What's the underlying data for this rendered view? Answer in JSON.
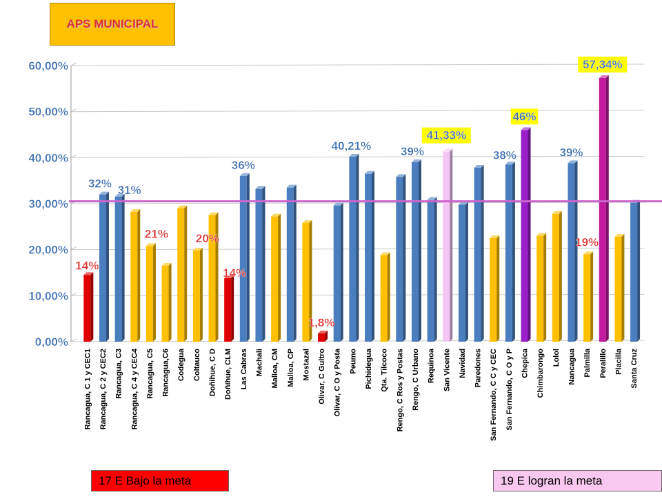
{
  "title": "APS MUNICIPAL",
  "legend": {
    "below": {
      "label": "17 E Bajo la meta",
      "color": "#ff0000"
    },
    "meet": {
      "label": "19 E logran la meta",
      "color": "#f9c8f0"
    }
  },
  "colors": {
    "blue": "#4a7ebf",
    "yellow": "#ffc000",
    "red": "#e00000",
    "pink": "#f4c6f4",
    "purple": "#9a1fc8",
    "magenta": "#c21a9e",
    "target_line": "#cc66cc",
    "label_blue": "#3f6fb0",
    "label_red": "#e03030",
    "label_highlight_bg": "#ffff00"
  },
  "chart_data": {
    "type": "bar",
    "ylim": [
      0,
      60
    ],
    "yticks": [
      "0,00%",
      "10,00%",
      "20,00%",
      "30,00%",
      "40,00%",
      "50,00%",
      "60,00%"
    ],
    "target": 30.5,
    "categories": [
      "Rancagua, C 1 y CEC1",
      "Rancagua, C 2 y CEC2",
      "Rancagua, C3",
      "Rancagua, C 4 y CEC4",
      "Rancagua, C5",
      "Rancagua,C6",
      "Codegua",
      "Coltauco",
      "Doñihue, C D",
      "Doñihue, CLM",
      "Las Cabras",
      "Machali",
      "Malloa, CM",
      "Malloa, CP",
      "Mostazal",
      "Olivar, C Gultro",
      "Olivar, C O y Posta",
      "Peumo",
      "Pichidegua",
      "Qta. Tilcoco",
      "Rengo, C Ros y Postas",
      "Rengo, C Urbano",
      "Requinoa",
      "San Vicente",
      "Navidad",
      "Paredones",
      "San Fernando, C C y CEC",
      "San Fernando, C O y P",
      "Chepica",
      "Chimbarongo",
      "Lolol",
      "Nancagua",
      "Palmilla",
      "Peralillo",
      "Placilla",
      "Santa Cruz"
    ],
    "values": [
      14.5,
      32,
      31.5,
      28.2,
      20.8,
      16.5,
      29.0,
      19.8,
      27.5,
      13.8,
      36.0,
      33.2,
      27.2,
      33.5,
      25.8,
      1.8,
      29.6,
      40.2,
      36.5,
      18.8,
      35.8,
      39.0,
      30.8,
      41.3,
      29.8,
      37.8,
      22.5,
      38.5,
      46.0,
      23.0,
      27.8,
      38.8,
      19.0,
      57.3,
      22.8,
      30.2
    ],
    "bar_colors": [
      "red",
      "blue",
      "blue",
      "yellow",
      "yellow",
      "yellow",
      "yellow",
      "yellow",
      "yellow",
      "red",
      "blue",
      "blue",
      "yellow",
      "blue",
      "yellow",
      "red",
      "blue",
      "blue",
      "blue",
      "yellow",
      "blue",
      "blue",
      "blue",
      "pink",
      "blue",
      "blue",
      "yellow",
      "blue",
      "purple",
      "yellow",
      "yellow",
      "blue",
      "yellow",
      "magenta",
      "yellow",
      "blue"
    ],
    "annotations": [
      {
        "index": 0,
        "text": "14%",
        "color": "red",
        "highlight": false,
        "dx": 0,
        "lift": 8
      },
      {
        "index": 1,
        "text": "32%",
        "color": "blue",
        "highlight": false,
        "dx": -4,
        "lift": 10
      },
      {
        "index": 2,
        "text": "31%",
        "color": "blue",
        "highlight": false,
        "dx": 16,
        "lift": 4
      },
      {
        "index": 4,
        "text": "21%",
        "color": "red",
        "highlight": false,
        "dx": 10,
        "lift": 12
      },
      {
        "index": 7,
        "text": "20%",
        "color": "red",
        "highlight": false,
        "dx": 16,
        "lift": 12
      },
      {
        "index": 9,
        "text": "14%",
        "color": "red",
        "highlight": false,
        "dx": 10,
        "lift": 2
      },
      {
        "index": 10,
        "text": "36%",
        "color": "blue",
        "highlight": false,
        "dx": 0,
        "lift": 10
      },
      {
        "index": 15,
        "text": "1,8%",
        "color": "red",
        "highlight": false,
        "dx": 0,
        "lift": 10
      },
      {
        "index": 17,
        "text": "40,21%",
        "color": "blue",
        "highlight": false,
        "dx": -2,
        "lift": 10
      },
      {
        "index": 21,
        "text": "39%",
        "color": "blue",
        "highlight": false,
        "dx": -4,
        "lift": 10
      },
      {
        "index": 23,
        "text": "41,33%",
        "color": "blue",
        "highlight": true,
        "dx": 0,
        "lift": 18
      },
      {
        "index": 27,
        "text": "38%",
        "color": "blue",
        "highlight": false,
        "dx": -6,
        "lift": 8
      },
      {
        "index": 28,
        "text": "46%",
        "color": "blue",
        "highlight": true,
        "dx": 0,
        "lift": 14
      },
      {
        "index": 31,
        "text": "39%",
        "color": "blue",
        "highlight": false,
        "dx": 0,
        "lift": 10
      },
      {
        "index": 32,
        "text": "19%",
        "color": "red",
        "highlight": false,
        "dx": 0,
        "lift": 12
      },
      {
        "index": 33,
        "text": "57,34%",
        "color": "blue",
        "highlight": true,
        "dx": 0,
        "lift": 14
      }
    ]
  }
}
